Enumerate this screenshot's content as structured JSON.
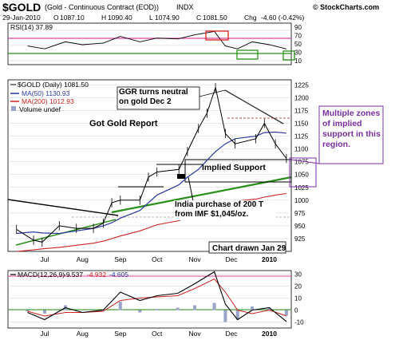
{
  "header": {
    "symbol": "$GOLD",
    "name": "(Gold - Continuous Contract (EOD))",
    "exchange": "INDX",
    "watermark": "© StockCharts.com",
    "date": "29-Jan-2010",
    "ohlc_labels": [
      "O",
      "H",
      "L",
      "C"
    ],
    "ohlc_values": [
      "1087.10",
      "1090.40",
      "1074.90",
      "1081.50"
    ],
    "chg_label": "Chg",
    "chg_value": "-4.60 (-0.42%)"
  },
  "rsi": {
    "label": "RSI(14) 37.89",
    "ticks": [
      "90",
      "70",
      "50",
      "30",
      "10"
    ]
  },
  "price": {
    "legend": [
      "$GOLD (Daily) 1081.50",
      "MA(50) 1130.93",
      "MA(200) 1012.93",
      "Volume undef"
    ],
    "ticks": [
      "1225",
      "1200",
      "1175",
      "1150",
      "1125",
      "1100",
      "1075",
      "1050",
      "1025",
      "1000",
      "975",
      "950",
      "925"
    ]
  },
  "macd": {
    "label": "MACD(12,26,9)",
    "values": [
      "-9.537",
      "-4.932",
      "-4.605"
    ],
    "ticks": [
      "30",
      "20",
      "10",
      "0",
      "-10"
    ]
  },
  "xaxis": {
    "labels": [
      "Jul",
      "Aug",
      "Sep",
      "Oct",
      "Nov",
      "Dec",
      "2010"
    ]
  },
  "annotations": {
    "ggr": "GGR turns neutral on gold Dec 2",
    "report": "Got Gold Report",
    "implied": "Implied Support",
    "india": "India purchase of 200 T from IMF $1,045/oz.",
    "drawn": "Chart drawn Jan 29",
    "zones": "Multiple zones of implied support in this region."
  },
  "colors": {
    "price_bar": "#000000",
    "ma50": "#2b3a9e",
    "ma200": "#cc2222",
    "trend": "#2a8f1a",
    "channel": "#000000",
    "highlight_pink": "#e040a0",
    "purple_text": "#7b2fa3"
  },
  "chart_data": [
    {
      "type": "line",
      "title": "RSI(14) 37.89",
      "x": [
        "2009-07-01",
        "2009-07-15",
        "2009-08-01",
        "2009-08-15",
        "2009-09-01",
        "2009-09-15",
        "2009-10-01",
        "2009-10-15",
        "2009-11-01",
        "2009-11-15",
        "2009-12-01",
        "2009-12-10",
        "2009-12-20",
        "2010-01-01",
        "2010-01-15",
        "2010-01-29"
      ],
      "series": [
        {
          "name": "RSI(14)",
          "values": [
            45,
            38,
            55,
            48,
            52,
            68,
            55,
            64,
            62,
            72,
            80,
            45,
            38,
            55,
            48,
            37.89
          ]
        }
      ],
      "ylim": [
        0,
        100
      ]
    },
    {
      "type": "line",
      "title": "$GOLD (Daily) 1081.50",
      "x": [
        "2009-06-22",
        "2009-07-06",
        "2009-07-13",
        "2009-07-27",
        "2009-08-10",
        "2009-08-24",
        "2009-09-01",
        "2009-09-08",
        "2009-09-15",
        "2009-10-01",
        "2009-10-08",
        "2009-10-15",
        "2009-11-02",
        "2009-11-09",
        "2009-11-18",
        "2009-11-25",
        "2009-12-02",
        "2009-12-10",
        "2009-12-18",
        "2010-01-04",
        "2010-01-11",
        "2010-01-20",
        "2010-01-29"
      ],
      "series": [
        {
          "name": "$GOLD (Daily) 1081.50",
          "values": [
            943,
            922,
            918,
            950,
            945,
            945,
            955,
            995,
            1000,
            1000,
            1045,
            1055,
            1060,
            1095,
            1140,
            1170,
            1220,
            1130,
            1110,
            1120,
            1150,
            1110,
            1081.5
          ]
        },
        {
          "name": "MA(50) 1130.93",
          "values": [
            935,
            938,
            936,
            935,
            940,
            945,
            950,
            956,
            965,
            980,
            995,
            1010,
            1030,
            1045,
            1060,
            1078,
            1095,
            1110,
            1120,
            1125,
            1132,
            1133,
            1130.93
          ]
        },
        {
          "name": "MA(200) 1012.93",
          "values": [
            900,
            903,
            905,
            908,
            912,
            916,
            920,
            925,
            930,
            940,
            946,
            952,
            960,
            966,
            972,
            980,
            985,
            992,
            998,
            1002,
            1006,
            1010,
            1012.93
          ]
        }
      ],
      "ylim": [
        900,
        1235
      ]
    },
    {
      "type": "line",
      "title": "MACD(12,26,9)",
      "x": [
        "2009-07-01",
        "2009-07-15",
        "2009-08-01",
        "2009-08-15",
        "2009-09-01",
        "2009-09-15",
        "2009-10-01",
        "2009-10-15",
        "2009-11-01",
        "2009-11-15",
        "2009-12-01",
        "2009-12-10",
        "2009-12-20",
        "2010-01-01",
        "2010-01-15",
        "2010-01-29"
      ],
      "series": [
        {
          "name": "MACD",
          "values": [
            -2,
            -8,
            2,
            -2,
            0,
            15,
            8,
            12,
            14,
            22,
            32,
            5,
            -8,
            0,
            2,
            -9.537
          ]
        },
        {
          "name": "Signal",
          "values": [
            -1,
            -5,
            -2,
            -2,
            -1,
            8,
            10,
            11,
            12,
            18,
            26,
            15,
            0,
            -3,
            0,
            -4.932
          ]
        }
      ],
      "ylim": [
        -15,
        33
      ]
    }
  ]
}
